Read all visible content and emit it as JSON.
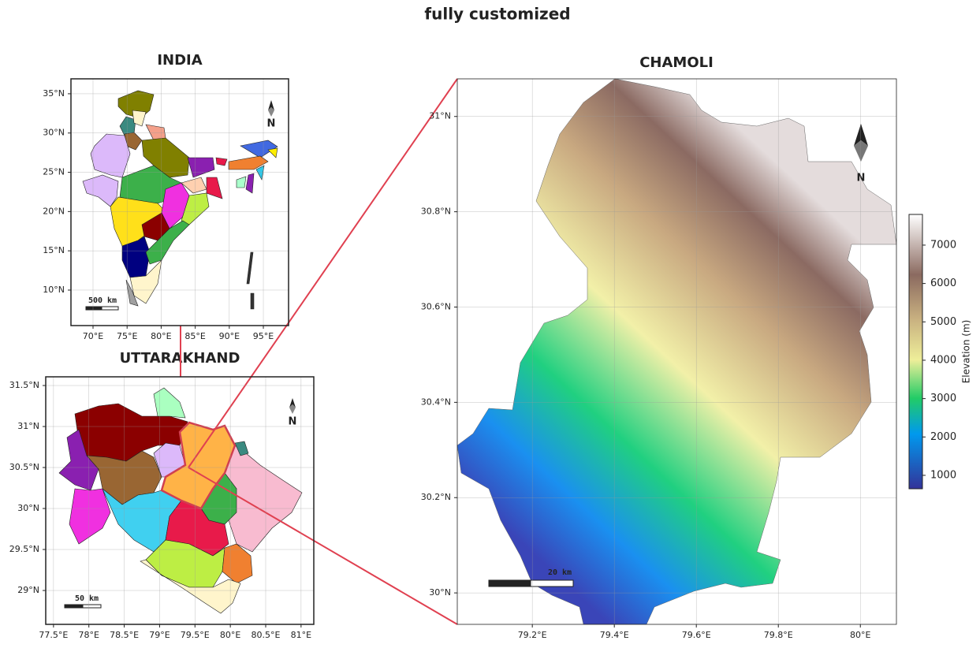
{
  "title": "fully customized",
  "panels": [
    {
      "title": "INDIA",
      "xlim": [
        66.76,
        98.7
      ],
      "ylim": [
        5.48,
        36.9
      ],
      "xticks": [
        {
          "value": 70,
          "label": "70°E"
        },
        {
          "value": 75,
          "label": "75°E"
        },
        {
          "value": 80,
          "label": "80°E"
        },
        {
          "value": 85,
          "label": "85°E"
        },
        {
          "value": 90,
          "label": "90°E"
        },
        {
          "value": 95,
          "label": "95°E"
        }
      ],
      "yticks": [
        {
          "value": 10,
          "label": "10°N"
        },
        {
          "value": 15,
          "label": "15°N"
        },
        {
          "value": 20,
          "label": "20°N"
        },
        {
          "value": 25,
          "label": "25°N"
        },
        {
          "value": 30,
          "label": "30°N"
        },
        {
          "value": 35,
          "label": "35°N"
        }
      ],
      "north": "N",
      "scale_bar": "500 km"
    },
    {
      "title": "UTTARAKHAND",
      "xlim": [
        77.39,
        81.18
      ],
      "ylim": [
        28.587,
        31.606
      ],
      "xticks": [
        {
          "value": 77.5,
          "label": "77.5°E"
        },
        {
          "value": 78,
          "label": "78°E"
        },
        {
          "value": 78.5,
          "label": "78.5°E"
        },
        {
          "value": 79,
          "label": "79°E"
        },
        {
          "value": 79.5,
          "label": "79.5°E"
        },
        {
          "value": 80,
          "label": "80°E"
        },
        {
          "value": 80.5,
          "label": "80.5°E"
        },
        {
          "value": 81,
          "label": "81°E"
        }
      ],
      "yticks": [
        {
          "value": 29,
          "label": "29°N"
        },
        {
          "value": 29.5,
          "label": "29.5°N"
        },
        {
          "value": 30,
          "label": "30°N"
        },
        {
          "value": 30.5,
          "label": "30.5°N"
        },
        {
          "value": 31,
          "label": "31°N"
        },
        {
          "value": 31.5,
          "label": "31.5°N"
        }
      ],
      "north": "N",
      "scale_bar": "50 km"
    },
    {
      "title": "CHAMOLI",
      "xlim": [
        79.017,
        80.088
      ],
      "ylim": [
        29.934,
        31.079
      ],
      "xticks": [
        {
          "value": 79.2,
          "label": "79.2°E"
        },
        {
          "value": 79.4,
          "label": "79.4°E"
        },
        {
          "value": 79.6,
          "label": "79.6°E"
        },
        {
          "value": 79.8,
          "label": "79.8°E"
        },
        {
          "value": 80,
          "label": "80°E"
        }
      ],
      "yticks": [
        {
          "value": 30,
          "label": "30°N"
        },
        {
          "value": 30.2,
          "label": "30.2°N"
        },
        {
          "value": 30.4,
          "label": "30.4°N"
        },
        {
          "value": 30.6,
          "label": "30.6°N"
        },
        {
          "value": 30.8,
          "label": "30.8°N"
        },
        {
          "value": 31,
          "label": "31°N"
        }
      ],
      "north": "N",
      "scale_bar": "20 km",
      "colorbar": {
        "label": "Elevation (m)",
        "lim": [
          650,
          7800
        ],
        "ticks": [
          1000,
          2000,
          3000,
          4000,
          5000,
          6000,
          7000
        ]
      }
    }
  ]
}
